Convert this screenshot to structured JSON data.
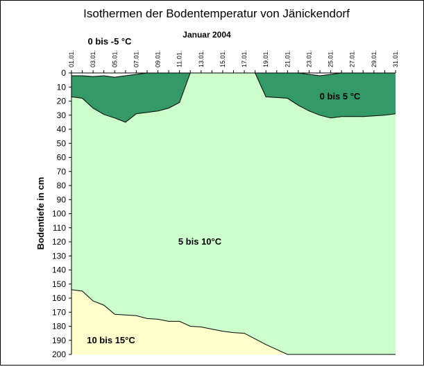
{
  "chart_data": {
    "type": "area",
    "title": "Isothermen der Bodentemperatur von Jänickendorf",
    "subtitle": "Januar 2004",
    "xlabel": "",
    "ylabel": "Bodentiefe in cm",
    "ylim": [
      0,
      200
    ],
    "y_inverted": true,
    "grid": false,
    "x_tick_labels": [
      "01.01.",
      "03.01.",
      "05.01.",
      "07.01.",
      "09.01.",
      "11.01.",
      "13.01.",
      "15.01.",
      "17.01.",
      "19.01.",
      "21.01.",
      "23.01.",
      "25.01.",
      "27.01.",
      "29.01.",
      "31.01."
    ],
    "y_ticks": [
      0,
      10,
      20,
      30,
      40,
      50,
      60,
      70,
      80,
      90,
      100,
      110,
      120,
      130,
      140,
      150,
      160,
      170,
      180,
      190,
      200
    ],
    "x": [
      1,
      2,
      3,
      4,
      5,
      6,
      7,
      8,
      9,
      10,
      11,
      12,
      13,
      14,
      15,
      16,
      17,
      18,
      19,
      20,
      21,
      22,
      23,
      24,
      25,
      26,
      27,
      28,
      29,
      30,
      31
    ],
    "zones": [
      {
        "name": "0 bis -5 °C",
        "color": "#ffffff"
      },
      {
        "name": "0 bis 5 °C",
        "color": "#339966"
      },
      {
        "name": "5 bis 10°C",
        "color": "#ccffcc"
      },
      {
        "name": "10 bis 15°C",
        "color": "#ffffcc"
      }
    ],
    "isotherm_0C": [
      2,
      2,
      2.5,
      2,
      3,
      2,
      1,
      0,
      0,
      0,
      0,
      0,
      0,
      0,
      0,
      0,
      0,
      0,
      0,
      0,
      0,
      0,
      1,
      2,
      1,
      0,
      0,
      0,
      0,
      0,
      0
    ],
    "isotherm_5C": [
      17,
      18,
      25,
      29.5,
      32,
      35,
      29,
      28,
      27,
      25,
      21,
      0,
      0,
      0,
      0,
      0,
      0,
      0,
      17,
      17.5,
      18,
      23,
      27,
      30,
      32,
      31,
      31,
      31,
      30.5,
      30,
      29
    ],
    "isotherm_10C": [
      154,
      155,
      162,
      165,
      171.5,
      172,
      172.5,
      174.5,
      175,
      176.5,
      176.5,
      180,
      180.5,
      182,
      183.5,
      184.5,
      185,
      189,
      193,
      196.5,
      200,
      200,
      200,
      200,
      200,
      200,
      200,
      200,
      200,
      200,
      200
    ]
  }
}
